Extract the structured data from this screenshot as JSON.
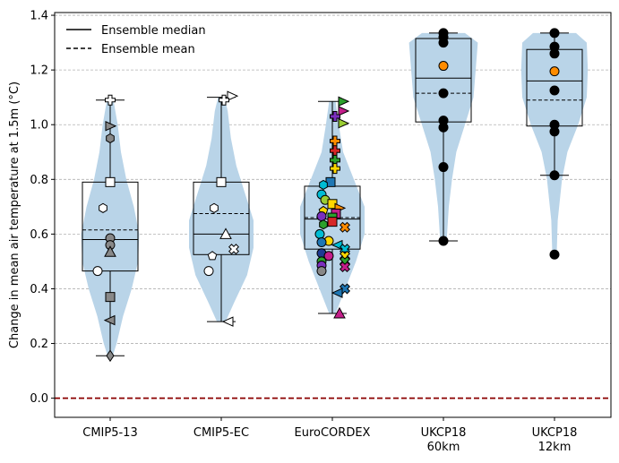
{
  "chart_data": {
    "type": "violin-box",
    "title": "",
    "xlabel": "",
    "ylabel": "Change in mean air temperature at 1.5m (°C)",
    "ylim": [
      -0.07,
      1.41
    ],
    "yticks": [
      0.0,
      0.2,
      0.4,
      0.6,
      0.8,
      1.0,
      1.2,
      1.4
    ],
    "ytick_labels": [
      "0.0",
      "0.2",
      "0.4",
      "0.6",
      "0.8",
      "1.0",
      "1.2",
      "1.4"
    ],
    "grid": "horizontal dashed",
    "reference_line": {
      "y": 0.0,
      "color": "#8b0000",
      "style": "dashed"
    },
    "colors": {
      "violin": "#b9d4e8",
      "reference": "#8b0000",
      "box": "#000000"
    },
    "legend": {
      "placement": "top-left",
      "entries": [
        {
          "label": "Ensemble median",
          "style": "solid"
        },
        {
          "label": "Ensemble mean",
          "style": "dashed"
        }
      ]
    },
    "categories": [
      {
        "label": [
          "CMIP5-13"
        ],
        "whisker_low": 0.155,
        "q1": 0.465,
        "median": 0.58,
        "mean": 0.615,
        "q3": 0.79,
        "whisker_high": 1.09,
        "violin": [
          [
            0.15,
            0.02
          ],
          [
            0.2,
            0.06
          ],
          [
            0.3,
            0.12
          ],
          [
            0.4,
            0.2
          ],
          [
            0.5,
            0.26
          ],
          [
            0.6,
            0.27
          ],
          [
            0.7,
            0.22
          ],
          [
            0.8,
            0.15
          ],
          [
            0.9,
            0.1
          ],
          [
            1.0,
            0.07
          ],
          [
            1.09,
            0.03
          ]
        ],
        "members": [
          {
            "y": 1.09,
            "m": "plus",
            "c": "#ffffff"
          },
          {
            "y": 0.995,
            "m": "tri-right",
            "c": "#888888"
          },
          {
            "y": 0.95,
            "m": "hexagon",
            "c": "#888888"
          },
          {
            "y": 0.79,
            "m": "square",
            "c": "#ffffff"
          },
          {
            "y": 0.695,
            "m": "hexagon",
            "c": "#ffffff",
            "dx": -8
          },
          {
            "y": 0.585,
            "m": "circle",
            "c": "#888888"
          },
          {
            "y": 0.56,
            "m": "circle",
            "c": "#888888"
          },
          {
            "y": 0.535,
            "m": "triangle",
            "c": "#888888"
          },
          {
            "y": 0.465,
            "m": "circle",
            "c": "#ffffff",
            "dx": -14
          },
          {
            "y": 0.37,
            "m": "square",
            "c": "#888888"
          },
          {
            "y": 0.285,
            "m": "tri-left",
            "c": "#888888"
          },
          {
            "y": 0.155,
            "m": "diamond",
            "c": "#888888"
          }
        ]
      },
      {
        "label": [
          "CMIP5-EC"
        ],
        "whisker_low": 0.28,
        "q1": 0.525,
        "median": 0.6,
        "mean": 0.675,
        "q3": 0.79,
        "whisker_high": 1.1,
        "violin": [
          [
            0.28,
            0.04
          ],
          [
            0.35,
            0.12
          ],
          [
            0.45,
            0.24
          ],
          [
            0.55,
            0.3
          ],
          [
            0.65,
            0.3
          ],
          [
            0.75,
            0.22
          ],
          [
            0.85,
            0.14
          ],
          [
            0.95,
            0.09
          ],
          [
            1.05,
            0.06
          ],
          [
            1.1,
            0.03
          ]
        ],
        "members": [
          {
            "y": 1.105,
            "m": "tri-right",
            "c": "#ffffff",
            "dx": 12
          },
          {
            "y": 1.09,
            "m": "plus",
            "c": "#ffffff",
            "dx": 3
          },
          {
            "y": 0.79,
            "m": "square",
            "c": "#ffffff"
          },
          {
            "y": 0.695,
            "m": "hexagon",
            "c": "#ffffff",
            "dx": -8
          },
          {
            "y": 0.6,
            "m": "triangle",
            "c": "#ffffff",
            "dx": 5
          },
          {
            "y": 0.545,
            "m": "x",
            "c": "#ffffff",
            "dx": 14
          },
          {
            "y": 0.52,
            "m": "pentagon",
            "c": "#ffffff",
            "dx": -10
          },
          {
            "y": 0.465,
            "m": "circle",
            "c": "#ffffff",
            "dx": -14
          },
          {
            "y": 0.28,
            "m": "tri-left",
            "c": "#ffffff",
            "dx": 8
          }
        ]
      },
      {
        "label": [
          "EuroCORDEX"
        ],
        "whisker_low": 0.31,
        "q1": 0.545,
        "median": 0.655,
        "mean": 0.66,
        "q3": 0.775,
        "whisker_high": 1.085,
        "violin": [
          [
            0.31,
            0.03
          ],
          [
            0.4,
            0.12
          ],
          [
            0.5,
            0.22
          ],
          [
            0.6,
            0.3
          ],
          [
            0.7,
            0.3
          ],
          [
            0.8,
            0.2
          ],
          [
            0.9,
            0.1
          ],
          [
            1.0,
            0.06
          ],
          [
            1.085,
            0.03
          ]
        ],
        "members": [
          {
            "y": 1.085,
            "m": "tri-right",
            "c": "#2ca02c",
            "dx": 12
          },
          {
            "y": 1.05,
            "m": "tri-right",
            "c": "#c41e8a",
            "dx": 12
          },
          {
            "y": 1.03,
            "m": "plus",
            "c": "#7b2fbe",
            "dx": 3
          },
          {
            "y": 1.005,
            "m": "tri-right",
            "c": "#9acd32",
            "dx": 12
          },
          {
            "y": 0.94,
            "m": "plus",
            "c": "#ff8c00",
            "dx": 3
          },
          {
            "y": 0.905,
            "m": "plus",
            "c": "#d62728",
            "dx": 3
          },
          {
            "y": 0.87,
            "m": "plus",
            "c": "#2ca02c",
            "dx": 3
          },
          {
            "y": 0.84,
            "m": "plus",
            "c": "#ffd700",
            "dx": 3
          },
          {
            "y": 0.79,
            "m": "square",
            "c": "#1f77b4",
            "dx": -2
          },
          {
            "y": 0.78,
            "m": "hexagon",
            "c": "#00bcd4",
            "dx": -10
          },
          {
            "y": 0.745,
            "m": "circle",
            "c": "#00bcd4",
            "dx": -12
          },
          {
            "y": 0.725,
            "m": "circle",
            "c": "#9acd32",
            "dx": -8
          },
          {
            "y": 0.71,
            "m": "square",
            "c": "#ffd700",
            "dx": 0
          },
          {
            "y": 0.695,
            "m": "tri-right",
            "c": "#ff8c00",
            "dx": 8
          },
          {
            "y": 0.685,
            "m": "pentagon",
            "c": "#ffd700",
            "dx": -10
          },
          {
            "y": 0.675,
            "m": "square",
            "c": "#c41e8a",
            "dx": 4
          },
          {
            "y": 0.665,
            "m": "circle",
            "c": "#7b2fbe",
            "dx": -12
          },
          {
            "y": 0.66,
            "m": "square",
            "c": "#2ca02c",
            "dx": 0
          },
          {
            "y": 0.645,
            "m": "square",
            "c": "#d62728",
            "dx": 0
          },
          {
            "y": 0.635,
            "m": "hexagon",
            "c": "#2ca02c",
            "dx": -10
          },
          {
            "y": 0.625,
            "m": "x",
            "c": "#ff8c00",
            "dx": 14
          },
          {
            "y": 0.6,
            "m": "circle",
            "c": "#00bcd4",
            "dx": -14
          },
          {
            "y": 0.575,
            "m": "circle",
            "c": "#ffd700",
            "dx": -4
          },
          {
            "y": 0.57,
            "m": "circle",
            "c": "#1f77b4",
            "dx": -12
          },
          {
            "y": 0.56,
            "m": "tri-left",
            "c": "#00bcd4",
            "dx": 6
          },
          {
            "y": 0.545,
            "m": "x",
            "c": "#00bcd4",
            "dx": 14
          },
          {
            "y": 0.53,
            "m": "circle",
            "c": "#1f3a93",
            "dx": -12
          },
          {
            "y": 0.52,
            "m": "circle",
            "c": "#c41e8a",
            "dx": -4
          },
          {
            "y": 0.52,
            "m": "x",
            "c": "#ffd700",
            "dx": 14
          },
          {
            "y": 0.5,
            "m": "circle",
            "c": "#2ca02c",
            "dx": -12
          },
          {
            "y": 0.5,
            "m": "x",
            "c": "#2ca02c",
            "dx": 14
          },
          {
            "y": 0.485,
            "m": "circle",
            "c": "#7b2fbe",
            "dx": -12
          },
          {
            "y": 0.48,
            "m": "x",
            "c": "#c41e8a",
            "dx": 14
          },
          {
            "y": 0.465,
            "m": "circle",
            "c": "#888888",
            "dx": -12
          },
          {
            "y": 0.4,
            "m": "x",
            "c": "#1f77b4",
            "dx": 14
          },
          {
            "y": 0.385,
            "m": "tri-left",
            "c": "#1f77b4",
            "dx": 6
          },
          {
            "y": 0.31,
            "m": "triangle",
            "c": "#c41e8a",
            "dx": 8
          }
        ]
      },
      {
        "label": [
          "UKCP18",
          "60km"
        ],
        "whisker_low": 0.575,
        "q1": 1.01,
        "median": 1.17,
        "mean": 1.115,
        "q3": 1.315,
        "whisker_high": 1.335,
        "violin": [
          [
            0.575,
            0.03
          ],
          [
            0.7,
            0.05
          ],
          [
            0.8,
            0.08
          ],
          [
            0.9,
            0.12
          ],
          [
            1.0,
            0.2
          ],
          [
            1.1,
            0.28
          ],
          [
            1.2,
            0.3
          ],
          [
            1.3,
            0.32
          ],
          [
            1.335,
            0.2
          ]
        ],
        "members": [
          {
            "y": 1.335,
            "m": "circle",
            "c": "#000000"
          },
          {
            "y": 1.32,
            "m": "circle",
            "c": "#000000"
          },
          {
            "y": 1.3,
            "m": "circle",
            "c": "#000000"
          },
          {
            "y": 1.215,
            "m": "circle",
            "c": "#ff8c00"
          },
          {
            "y": 1.115,
            "m": "circle",
            "c": "#000000"
          },
          {
            "y": 1.015,
            "m": "circle",
            "c": "#000000"
          },
          {
            "y": 0.99,
            "m": "circle",
            "c": "#000000"
          },
          {
            "y": 0.845,
            "m": "circle",
            "c": "#000000"
          },
          {
            "y": 0.575,
            "m": "circle",
            "c": "#000000"
          }
        ]
      },
      {
        "label": [
          "UKCP18",
          "12km"
        ],
        "whisker_low": 0.815,
        "q1": 0.995,
        "median": 1.16,
        "mean": 1.09,
        "q3": 1.275,
        "whisker_high": 1.335,
        "violin": [
          [
            0.52,
            0.02
          ],
          [
            0.65,
            0.03
          ],
          [
            0.8,
            0.07
          ],
          [
            0.9,
            0.12
          ],
          [
            1.0,
            0.22
          ],
          [
            1.1,
            0.3
          ],
          [
            1.2,
            0.31
          ],
          [
            1.3,
            0.3
          ],
          [
            1.335,
            0.2
          ]
        ],
        "members": [
          {
            "y": 1.335,
            "m": "circle",
            "c": "#000000"
          },
          {
            "y": 1.285,
            "m": "circle",
            "c": "#000000"
          },
          {
            "y": 1.26,
            "m": "circle",
            "c": "#000000"
          },
          {
            "y": 1.195,
            "m": "circle",
            "c": "#ff8c00"
          },
          {
            "y": 1.125,
            "m": "circle",
            "c": "#000000"
          },
          {
            "y": 1.0,
            "m": "circle",
            "c": "#000000"
          },
          {
            "y": 0.975,
            "m": "circle",
            "c": "#000000"
          },
          {
            "y": 0.815,
            "m": "circle",
            "c": "#000000"
          },
          {
            "y": 0.525,
            "m": "circle",
            "c": "#000000"
          }
        ]
      }
    ]
  }
}
